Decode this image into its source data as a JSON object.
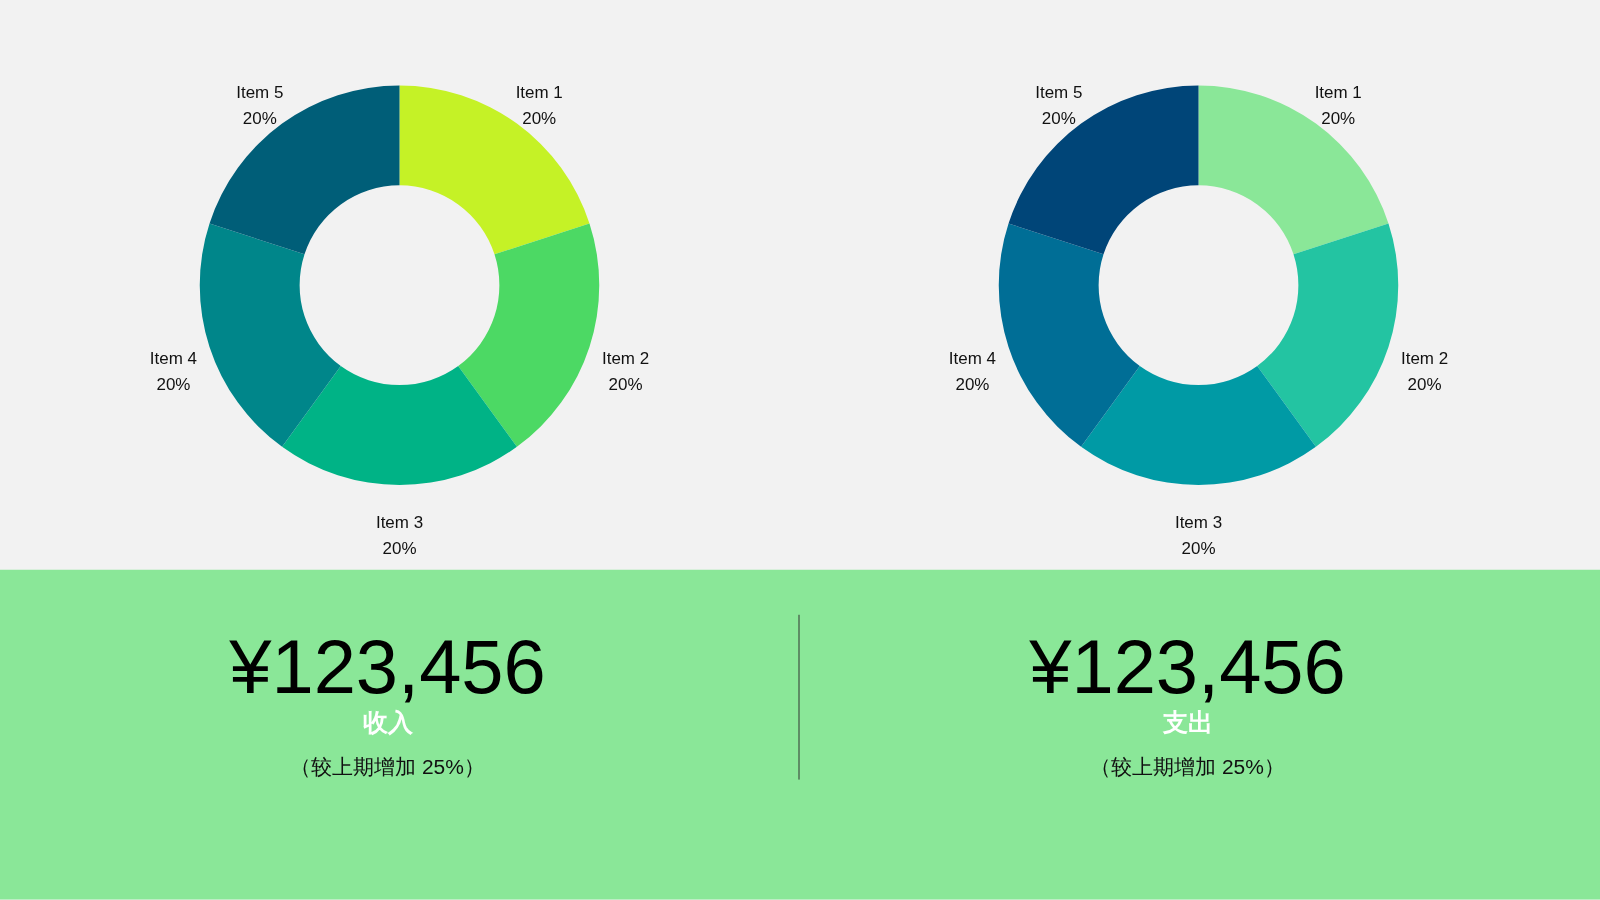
{
  "chart_data": [
    {
      "type": "donut",
      "categories": [
        "Item 1",
        "Item 2",
        "Item 3",
        "Item 4",
        "Item 5"
      ],
      "values": [
        20,
        20,
        20,
        20,
        20
      ],
      "value_labels": [
        "20%",
        "20%",
        "20%",
        "20%",
        "20%"
      ],
      "colors": [
        "#c5f226",
        "#4cd964",
        "#00b386",
        "#00868a",
        "#005e78"
      ]
    },
    {
      "type": "donut",
      "categories": [
        "Item 1",
        "Item 2",
        "Item 3",
        "Item 4",
        "Item 5"
      ],
      "values": [
        20,
        20,
        20,
        20,
        20
      ],
      "value_labels": [
        "20%",
        "20%",
        "20%",
        "20%",
        "20%"
      ],
      "colors": [
        "#8ae798",
        "#23c4a2",
        "#009aa5",
        "#006e96",
        "#004578"
      ]
    },
    {
      "type": "other",
      "color": "#8ae798",
      "annotations": [
        "¥123,456",
        "收入",
        "（较上期增加 25%）"
      ]
    },
    {
      "type": "other",
      "color": "#8ae798",
      "annotations": [
        "¥123,456",
        "支出",
        "（较上期增加 25%）"
      ]
    }
  ]
}
